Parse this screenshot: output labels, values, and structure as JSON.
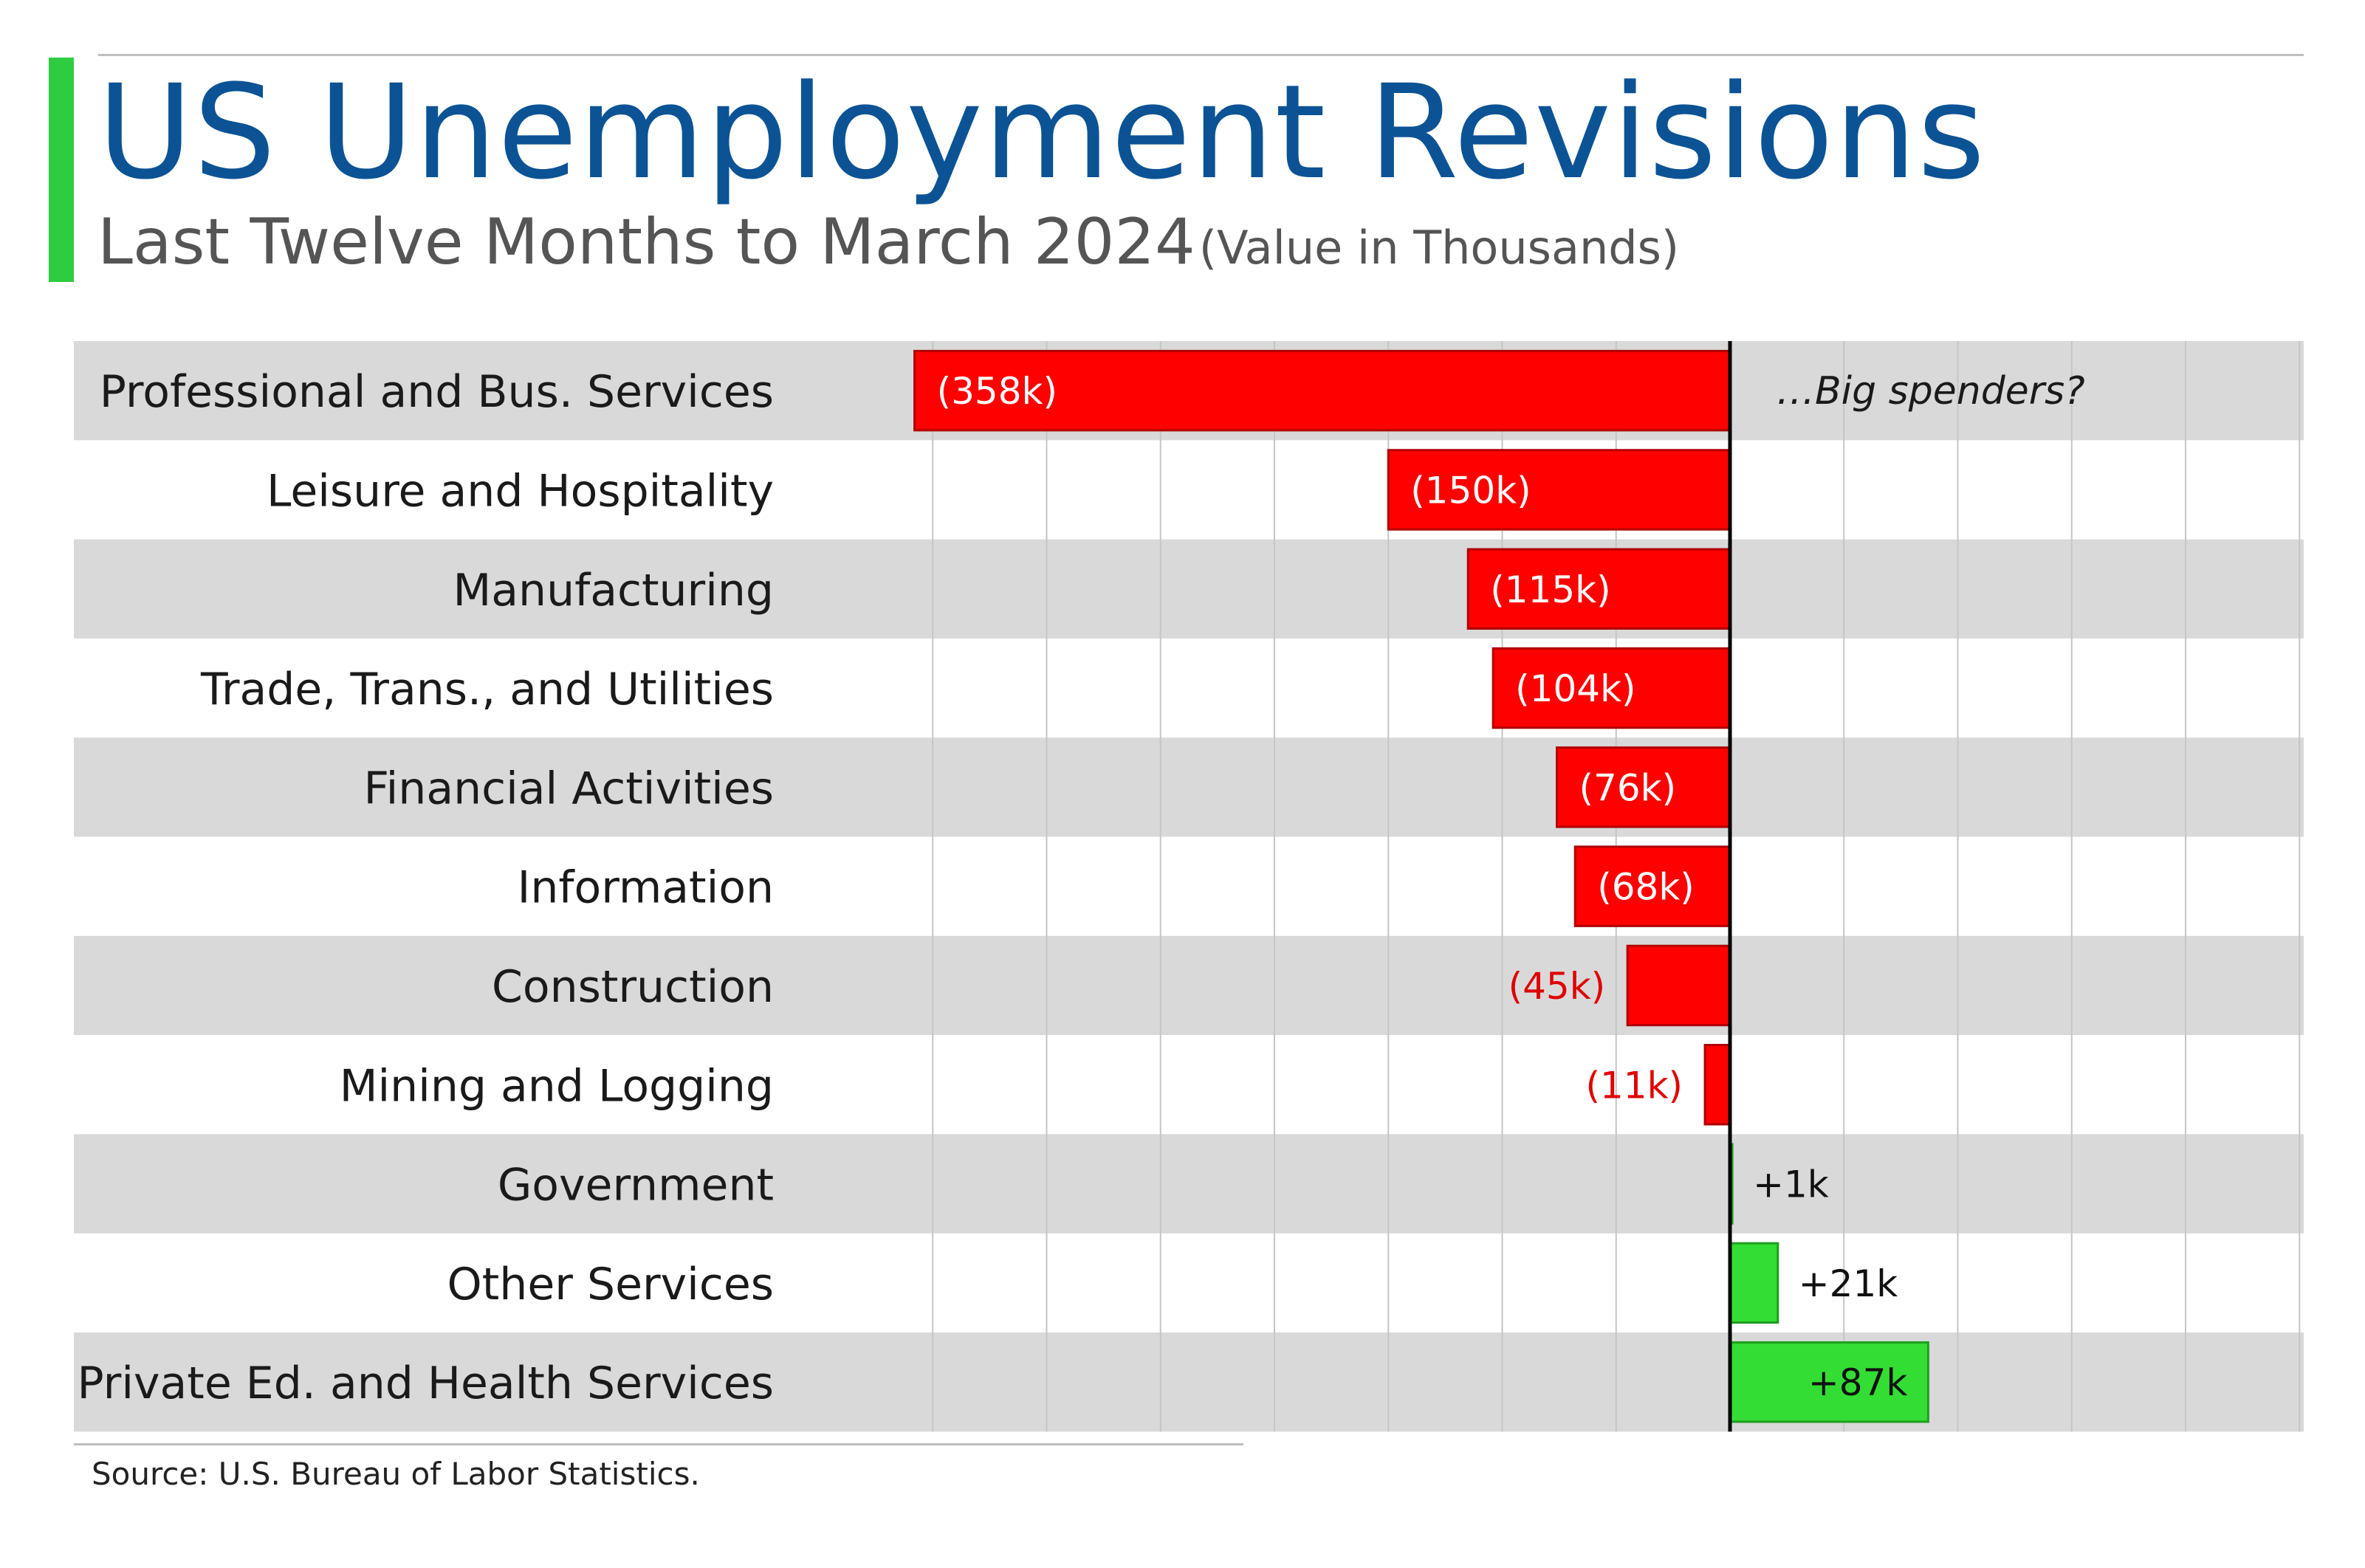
{
  "title": "US Unemployment Revisions",
  "subtitle": "Last Twelve Months to March 2024",
  "unit_note": "(Value in Thousands)",
  "source": "Source: U.S. Bureau of Labor Statistics.",
  "colors": {
    "title": "#0b5394",
    "negative": "#ff0000",
    "positive": "#33dd33",
    "row_band": "#d9d9d9",
    "accent": "#2ecc40"
  },
  "chart_data": {
    "type": "bar",
    "orientation": "horizontal",
    "categories": [
      "Professional and Bus. Services",
      "Leisure and Hospitality",
      "Manufacturing",
      "Trade, Trans., and Utilities",
      "Financial Activities",
      "Information",
      "Construction",
      "Mining and Logging",
      "Government",
      "Other Services",
      "Private Ed. and Health Services"
    ],
    "values": [
      -358,
      -150,
      -115,
      -104,
      -76,
      -68,
      -45,
      -11,
      1,
      21,
      87
    ],
    "data_labels": [
      "(358k)",
      "(150k)",
      "(115k)",
      "(104k)",
      "(76k)",
      "(68k)",
      "(45k)",
      "(11k)",
      "+1k",
      "+21k",
      "+87k"
    ],
    "xlim": [
      -400,
      250
    ],
    "grid": true,
    "grid_step": 50,
    "annotation": {
      "category": "Professional and Bus. Services",
      "text": "…Big spenders?"
    }
  }
}
